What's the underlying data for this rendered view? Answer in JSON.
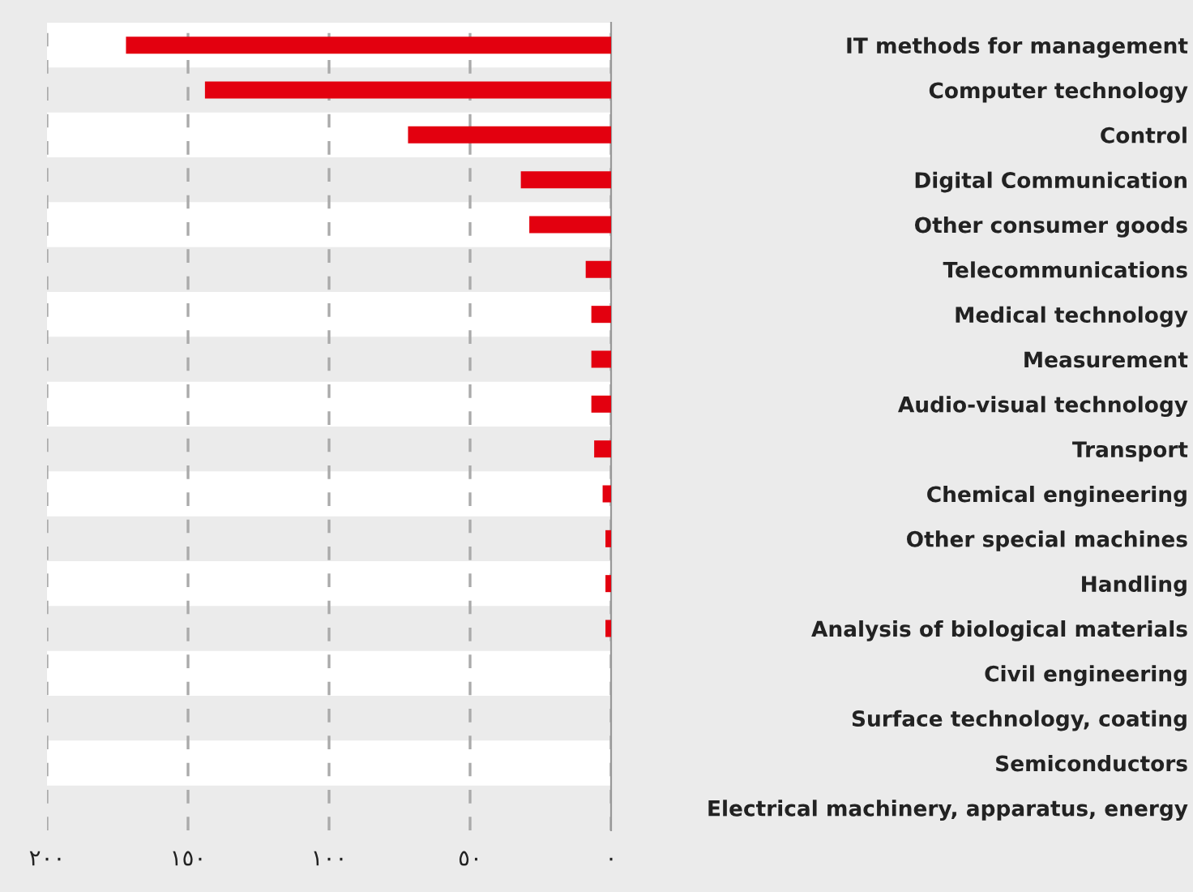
{
  "chart_data": {
    "type": "bar",
    "orientation": "horizontal",
    "categories": [
      "IT methods for management",
      "Computer technology",
      "Control",
      "Digital Communication",
      "Other consumer goods",
      "Telecommunications",
      "Medical technology",
      "Measurement",
      "Audio-visual technology",
      "Transport",
      "Chemical engineering",
      "Other special machines",
      "Handling",
      "Analysis of biological materials",
      "Civil engineering",
      "Surface technology, coating",
      "Semiconductors",
      "Electrical machinery, apparatus, energy"
    ],
    "values": [
      172,
      144,
      72,
      32,
      29,
      9,
      7,
      7,
      7,
      6,
      3,
      2,
      2,
      2,
      0,
      0,
      0,
      0
    ],
    "color": "#e3000f",
    "xlim": [
      200,
      0
    ],
    "xticks": [
      {
        "value": 200,
        "label": "٢٠٠"
      },
      {
        "value": 150,
        "label": "١٥٠"
      },
      {
        "value": 100,
        "label": "١٠٠"
      },
      {
        "value": 50,
        "label": "٥٠"
      },
      {
        "value": 0,
        "label": "٠"
      }
    ],
    "grid": "x",
    "legend": false
  }
}
